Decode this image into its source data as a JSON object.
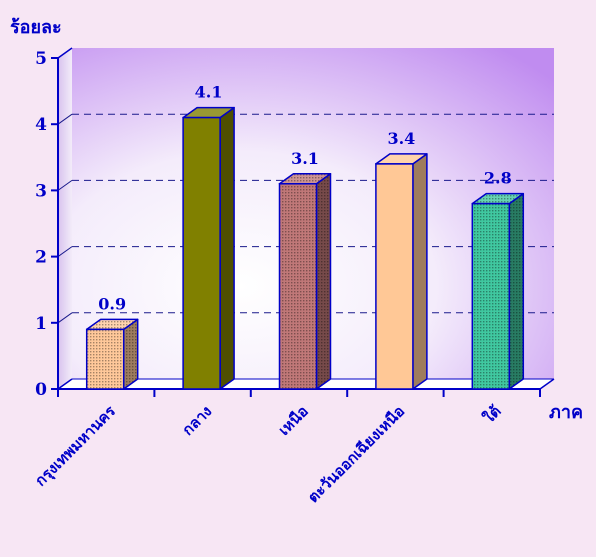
{
  "chart_data": {
    "type": "bar",
    "title": "",
    "ylabel": "ร้อยละ",
    "xlabel": "ภาค",
    "categories": [
      "กรุงเทพมหานคร",
      "กลาง",
      "เหนือ",
      "ตะวันออกเฉียงเหนือ",
      "ใต้"
    ],
    "values": [
      0.9,
      4.1,
      3.1,
      3.4,
      2.8
    ],
    "value_labels": [
      "0.9",
      "4.1",
      "3.1",
      "3.4",
      "2.8"
    ],
    "ylim": [
      0,
      5
    ],
    "yticks": [
      "0",
      "1",
      "2",
      "3",
      "4",
      "5"
    ],
    "grid": "dashed horizontal",
    "legend": "none",
    "three_d": true,
    "bar_colors": [
      "#ffc89a",
      "#808000",
      "#c07878",
      "#ffc896",
      "#40c8a0"
    ],
    "bar_patterns": [
      "dotted",
      "solid",
      "dotted",
      "solid",
      "dotted"
    ]
  },
  "colors": {
    "text": "#0000c8",
    "axis": "#0000c8",
    "grid": "#1a1a8c",
    "background": "#f7e6f4",
    "plot_fill_light": "#ffffff",
    "plot_fill_dark": "#c08cf0"
  }
}
